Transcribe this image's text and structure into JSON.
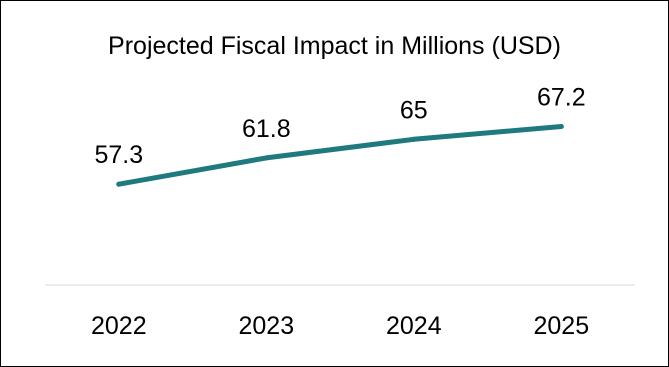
{
  "chart_data": {
    "type": "line",
    "title": "Projected Fiscal Impact in Millions (USD)",
    "xlabel": "",
    "ylabel": "",
    "categories": [
      "2022",
      "2023",
      "2024",
      "2025"
    ],
    "series": [
      {
        "values": [
          57.3,
          61.8,
          65,
          67.2
        ],
        "data_labels": [
          "57.3",
          "61.8",
          "65",
          "67.2"
        ],
        "color": "#1F7A80"
      }
    ],
    "ylim": [
      40,
      75
    ],
    "grid": false,
    "legend": "none",
    "axis_line_color": "#D9D9D9"
  }
}
